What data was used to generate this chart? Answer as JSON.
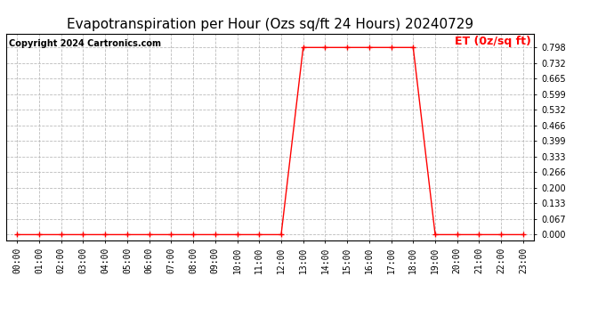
{
  "title": "Evapotranspiration per Hour (Ozs sq/ft 24 Hours) 20240729",
  "copyright": "Copyright 2024 Cartronics.com",
  "legend_label": "ET (0z/sq ft)",
  "line_color": "#ff0000",
  "marker": "+",
  "marker_size": 4,
  "background_color": "#ffffff",
  "grid_color": "#bbbbbb",
  "hours": [
    0,
    1,
    2,
    3,
    4,
    5,
    6,
    7,
    8,
    9,
    10,
    11,
    12,
    13,
    14,
    15,
    16,
    17,
    18,
    19,
    20,
    21,
    22,
    23
  ],
  "values": [
    0.0,
    0.0,
    0.0,
    0.0,
    0.0,
    0.0,
    0.0,
    0.0,
    0.0,
    0.0,
    0.0,
    0.0,
    0.0,
    0.798,
    0.798,
    0.798,
    0.798,
    0.798,
    0.798,
    0.0,
    0.0,
    0.0,
    0.0,
    0.0
  ],
  "yticks": [
    0.0,
    0.067,
    0.133,
    0.2,
    0.266,
    0.333,
    0.399,
    0.466,
    0.532,
    0.599,
    0.665,
    0.732,
    0.798
  ],
  "ylim": [
    -0.025,
    0.858
  ],
  "xlim": [
    -0.5,
    23.5
  ],
  "title_fontsize": 11,
  "copyright_fontsize": 7,
  "legend_fontsize": 9,
  "tick_fontsize": 7
}
